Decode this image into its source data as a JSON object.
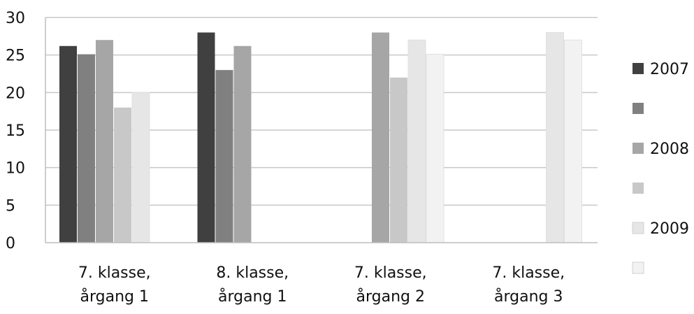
{
  "chart_data": {
    "type": "bar",
    "title": "",
    "xlabel": "",
    "ylabel": "",
    "ylim": [
      0,
      30
    ],
    "yticks": [
      0,
      5,
      10,
      15,
      20,
      25,
      30
    ],
    "grid": true,
    "legend_position": "right",
    "categories": [
      [
        "7. klasse,",
        "årgang 1"
      ],
      [
        "8. klasse,",
        "årgang 1"
      ],
      [
        "7. klasse,",
        "årgang 2"
      ],
      [
        "7. klasse,",
        "årgang 3"
      ]
    ],
    "series": [
      {
        "name": "2007",
        "color": "#404040",
        "values": [
          26.2,
          28,
          null,
          null
        ]
      },
      {
        "name": "",
        "color": "#808080",
        "values": [
          25.1,
          23,
          null,
          null
        ]
      },
      {
        "name": "2008",
        "color": "#a6a6a6",
        "values": [
          27,
          26.2,
          28,
          null
        ]
      },
      {
        "name": "",
        "color": "#c8c8c8",
        "values": [
          18,
          null,
          22,
          null
        ]
      },
      {
        "name": "2009",
        "color": "#e6e6e6",
        "values": [
          20,
          null,
          27,
          28
        ]
      },
      {
        "name": "",
        "color": "#f2f2f2",
        "values": [
          null,
          null,
          25.1,
          27
        ]
      }
    ]
  }
}
